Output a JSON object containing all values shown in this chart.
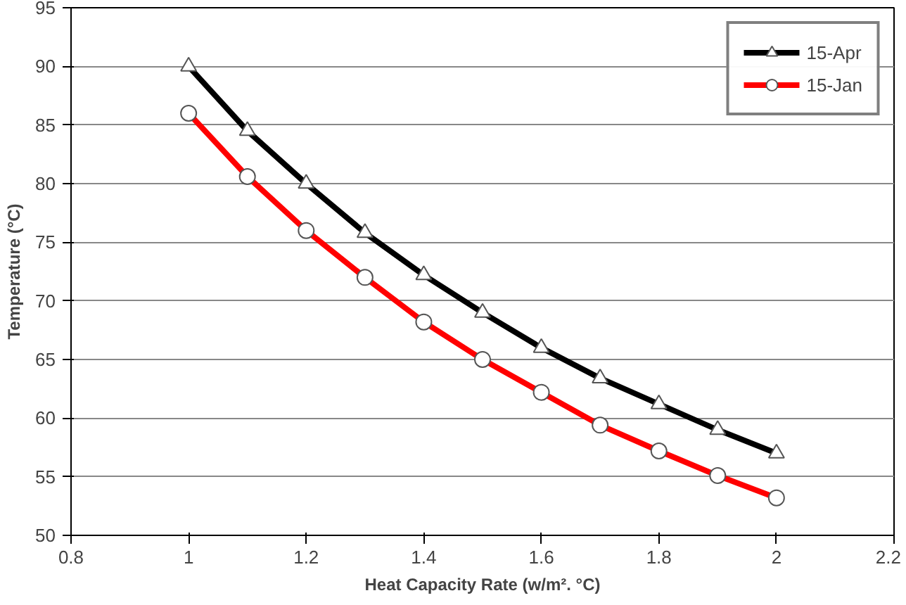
{
  "chart_data": {
    "type": "line",
    "xlabel": "Heat Capacity Rate (w/m². °C)",
    "ylabel": "Temperature (°C)",
    "x": [
      1,
      1.1,
      1.2,
      1.3,
      1.4,
      1.5,
      1.6,
      1.7,
      1.8,
      1.9,
      2
    ],
    "series": [
      {
        "name": "15-Apr",
        "color": "#000000",
        "marker": "triangle",
        "values": [
          90,
          84.5,
          80,
          75.8,
          72.2,
          69,
          66,
          63.4,
          61.2,
          59,
          57
        ]
      },
      {
        "name": "15-Jan",
        "color": "#ff0000",
        "marker": "circle",
        "values": [
          86,
          80.6,
          76,
          72,
          68.2,
          65,
          62.2,
          59.4,
          57.2,
          55.1,
          53.2
        ]
      }
    ],
    "xlim": [
      0.8,
      2.2
    ],
    "xticks": [
      0.8,
      1,
      1.2,
      1.4,
      1.6,
      1.8,
      2,
      2.2
    ],
    "ylim": [
      50,
      95
    ],
    "yticks": [
      50,
      55,
      60,
      65,
      70,
      75,
      80,
      85,
      90,
      95
    ],
    "grid": "y",
    "legend": "top right",
    "line_style": "solid"
  }
}
